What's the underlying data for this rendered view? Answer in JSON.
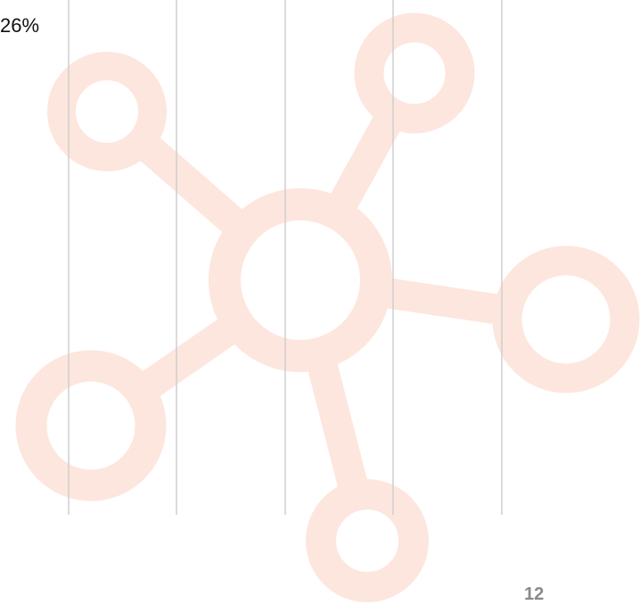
{
  "labels": {
    "percent": "26%",
    "page_number": "12"
  }
}
